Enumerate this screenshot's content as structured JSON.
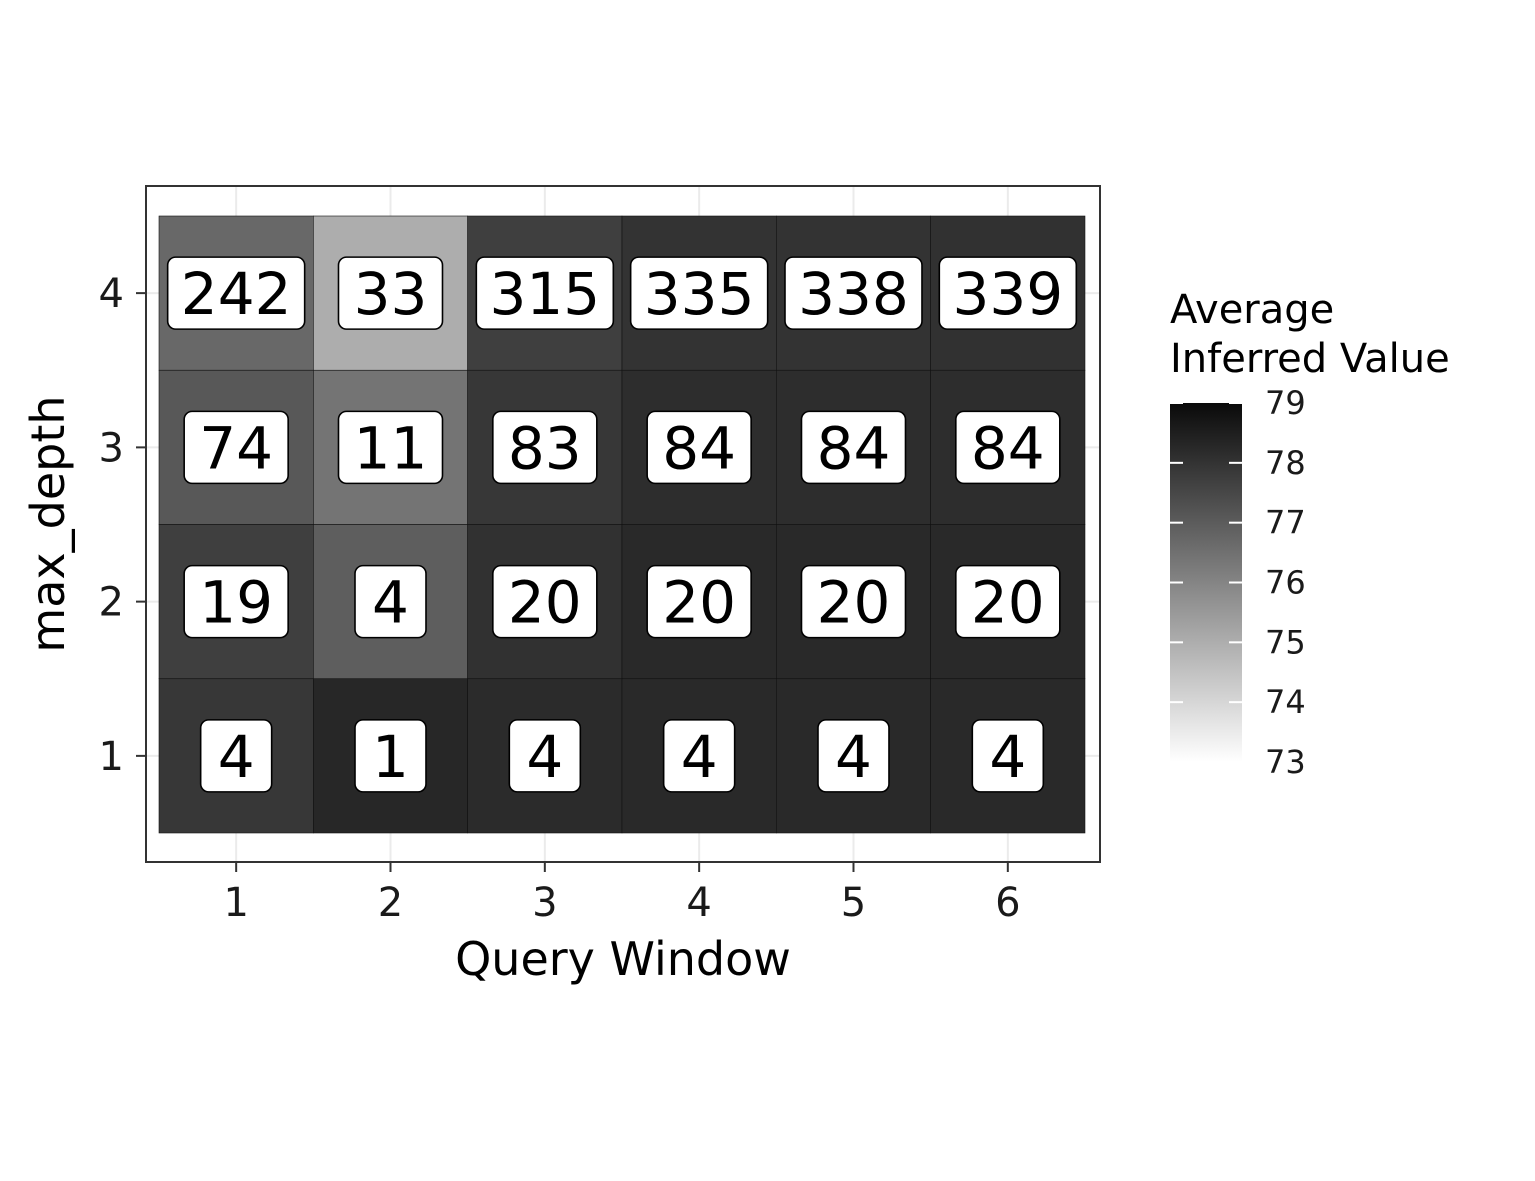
{
  "chart_data": {
    "type": "heatmap",
    "xlabel": "Query Window",
    "ylabel": "max_depth",
    "x": [
      1,
      2,
      3,
      4,
      5,
      6
    ],
    "y": [
      1,
      2,
      3,
      4
    ],
    "legend": {
      "title_lines": [
        "Average",
        "Inferred Value"
      ],
      "range": [
        73,
        79
      ],
      "ticks": [
        73,
        74,
        75,
        76,
        77,
        78,
        79
      ],
      "low_color": "#ffffff",
      "high_color": "#0a0a0a",
      "placement": "right"
    },
    "cells": [
      {
        "x": 1,
        "y": 4,
        "label": "242",
        "fill": 76.7
      },
      {
        "x": 2,
        "y": 4,
        "label": "33",
        "fill": 75.0
      },
      {
        "x": 3,
        "y": 4,
        "label": "315",
        "fill": 77.7
      },
      {
        "x": 4,
        "y": 4,
        "label": "335",
        "fill": 78.0
      },
      {
        "x": 5,
        "y": 4,
        "label": "338",
        "fill": 78.0
      },
      {
        "x": 6,
        "y": 4,
        "label": "339",
        "fill": 78.05
      },
      {
        "x": 1,
        "y": 3,
        "label": "74",
        "fill": 77.1
      },
      {
        "x": 2,
        "y": 3,
        "label": "11",
        "fill": 76.4
      },
      {
        "x": 3,
        "y": 3,
        "label": "83",
        "fill": 77.9
      },
      {
        "x": 4,
        "y": 3,
        "label": "84",
        "fill": 78.15
      },
      {
        "x": 5,
        "y": 3,
        "label": "84",
        "fill": 78.15
      },
      {
        "x": 6,
        "y": 3,
        "label": "84",
        "fill": 78.15
      },
      {
        "x": 1,
        "y": 2,
        "label": "19",
        "fill": 77.7
      },
      {
        "x": 2,
        "y": 2,
        "label": "4",
        "fill": 76.95
      },
      {
        "x": 3,
        "y": 2,
        "label": "20",
        "fill": 78.05
      },
      {
        "x": 4,
        "y": 2,
        "label": "20",
        "fill": 78.25
      },
      {
        "x": 5,
        "y": 2,
        "label": "20",
        "fill": 78.25
      },
      {
        "x": 6,
        "y": 2,
        "label": "20",
        "fill": 78.25
      },
      {
        "x": 1,
        "y": 1,
        "label": "4",
        "fill": 77.9
      },
      {
        "x": 2,
        "y": 1,
        "label": "1",
        "fill": 78.3
      },
      {
        "x": 3,
        "y": 1,
        "label": "4",
        "fill": 78.2
      },
      {
        "x": 4,
        "y": 1,
        "label": "4",
        "fill": 78.25
      },
      {
        "x": 5,
        "y": 1,
        "label": "4",
        "fill": 78.25
      },
      {
        "x": 6,
        "y": 1,
        "label": "4",
        "fill": 78.25
      }
    ],
    "grid": true
  }
}
